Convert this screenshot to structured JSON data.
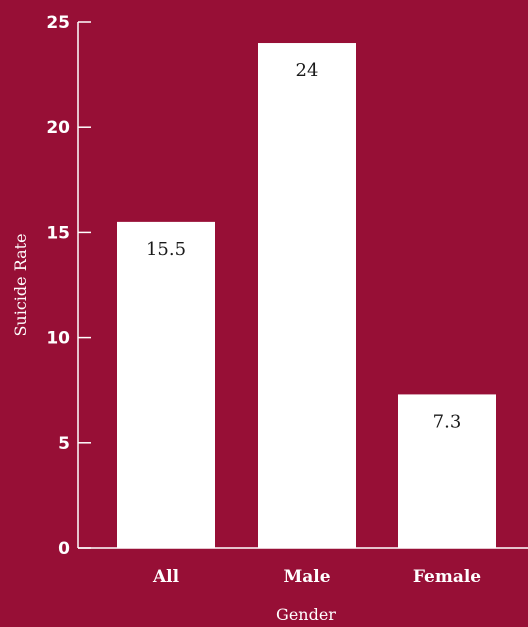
{
  "chart_data": {
    "type": "bar",
    "categories": [
      "All",
      "Male",
      "Female"
    ],
    "values": [
      15.5,
      24,
      7.3
    ],
    "value_labels": [
      "15.5",
      "24",
      "7.3"
    ],
    "title": "",
    "xlabel": "Gender",
    "ylabel": "Suicide Rate",
    "ylim": [
      0,
      25
    ],
    "yticks": [
      0,
      5,
      10,
      15,
      20,
      25
    ],
    "grid": false,
    "colors": {
      "background": "#970f36",
      "bar": "#ffffff",
      "axis": "#ffffff",
      "value_text": "#1a1a1a"
    }
  }
}
